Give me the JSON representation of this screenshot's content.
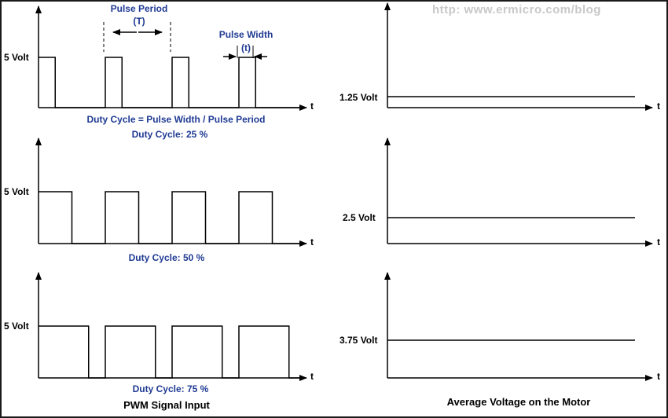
{
  "watermark": "http: www.ermicro.com/blog",
  "panels": {
    "left": [
      {
        "level_label": "5 Volt",
        "axis_label": "t",
        "duty_caption": "Duty Cycle: 25 %",
        "duty_fraction": 0.25
      },
      {
        "level_label": "5 Volt",
        "axis_label": "t",
        "duty_caption": "Duty Cycle: 50 %",
        "duty_fraction": 0.5
      },
      {
        "level_label": "5 Volt",
        "axis_label": "t",
        "duty_caption": "Duty Cycle: 75 %",
        "duty_fraction": 0.75
      }
    ],
    "right": [
      {
        "level_label": "1.25 Volt",
        "axis_label": "t",
        "voltage": 1.25
      },
      {
        "level_label": "2.5 Volt",
        "axis_label": "t",
        "voltage": 2.5
      },
      {
        "level_label": "3.75 Volt",
        "axis_label": "t",
        "voltage": 3.75
      }
    ]
  },
  "annotations": {
    "pulse_period": "Pulse Period",
    "pulse_period_symbol": "(T)",
    "pulse_width": "Pulse Width",
    "pulse_width_symbol": "(t)",
    "formula": "Duty Cycle = Pulse Width / Pulse Period"
  },
  "captions": {
    "left": "PWM Signal Input",
    "right": "Average Voltage on the Motor"
  },
  "colors": {
    "annotation_text": "#1f3a93",
    "lines": "#000000",
    "border": "#1a1a1a"
  }
}
